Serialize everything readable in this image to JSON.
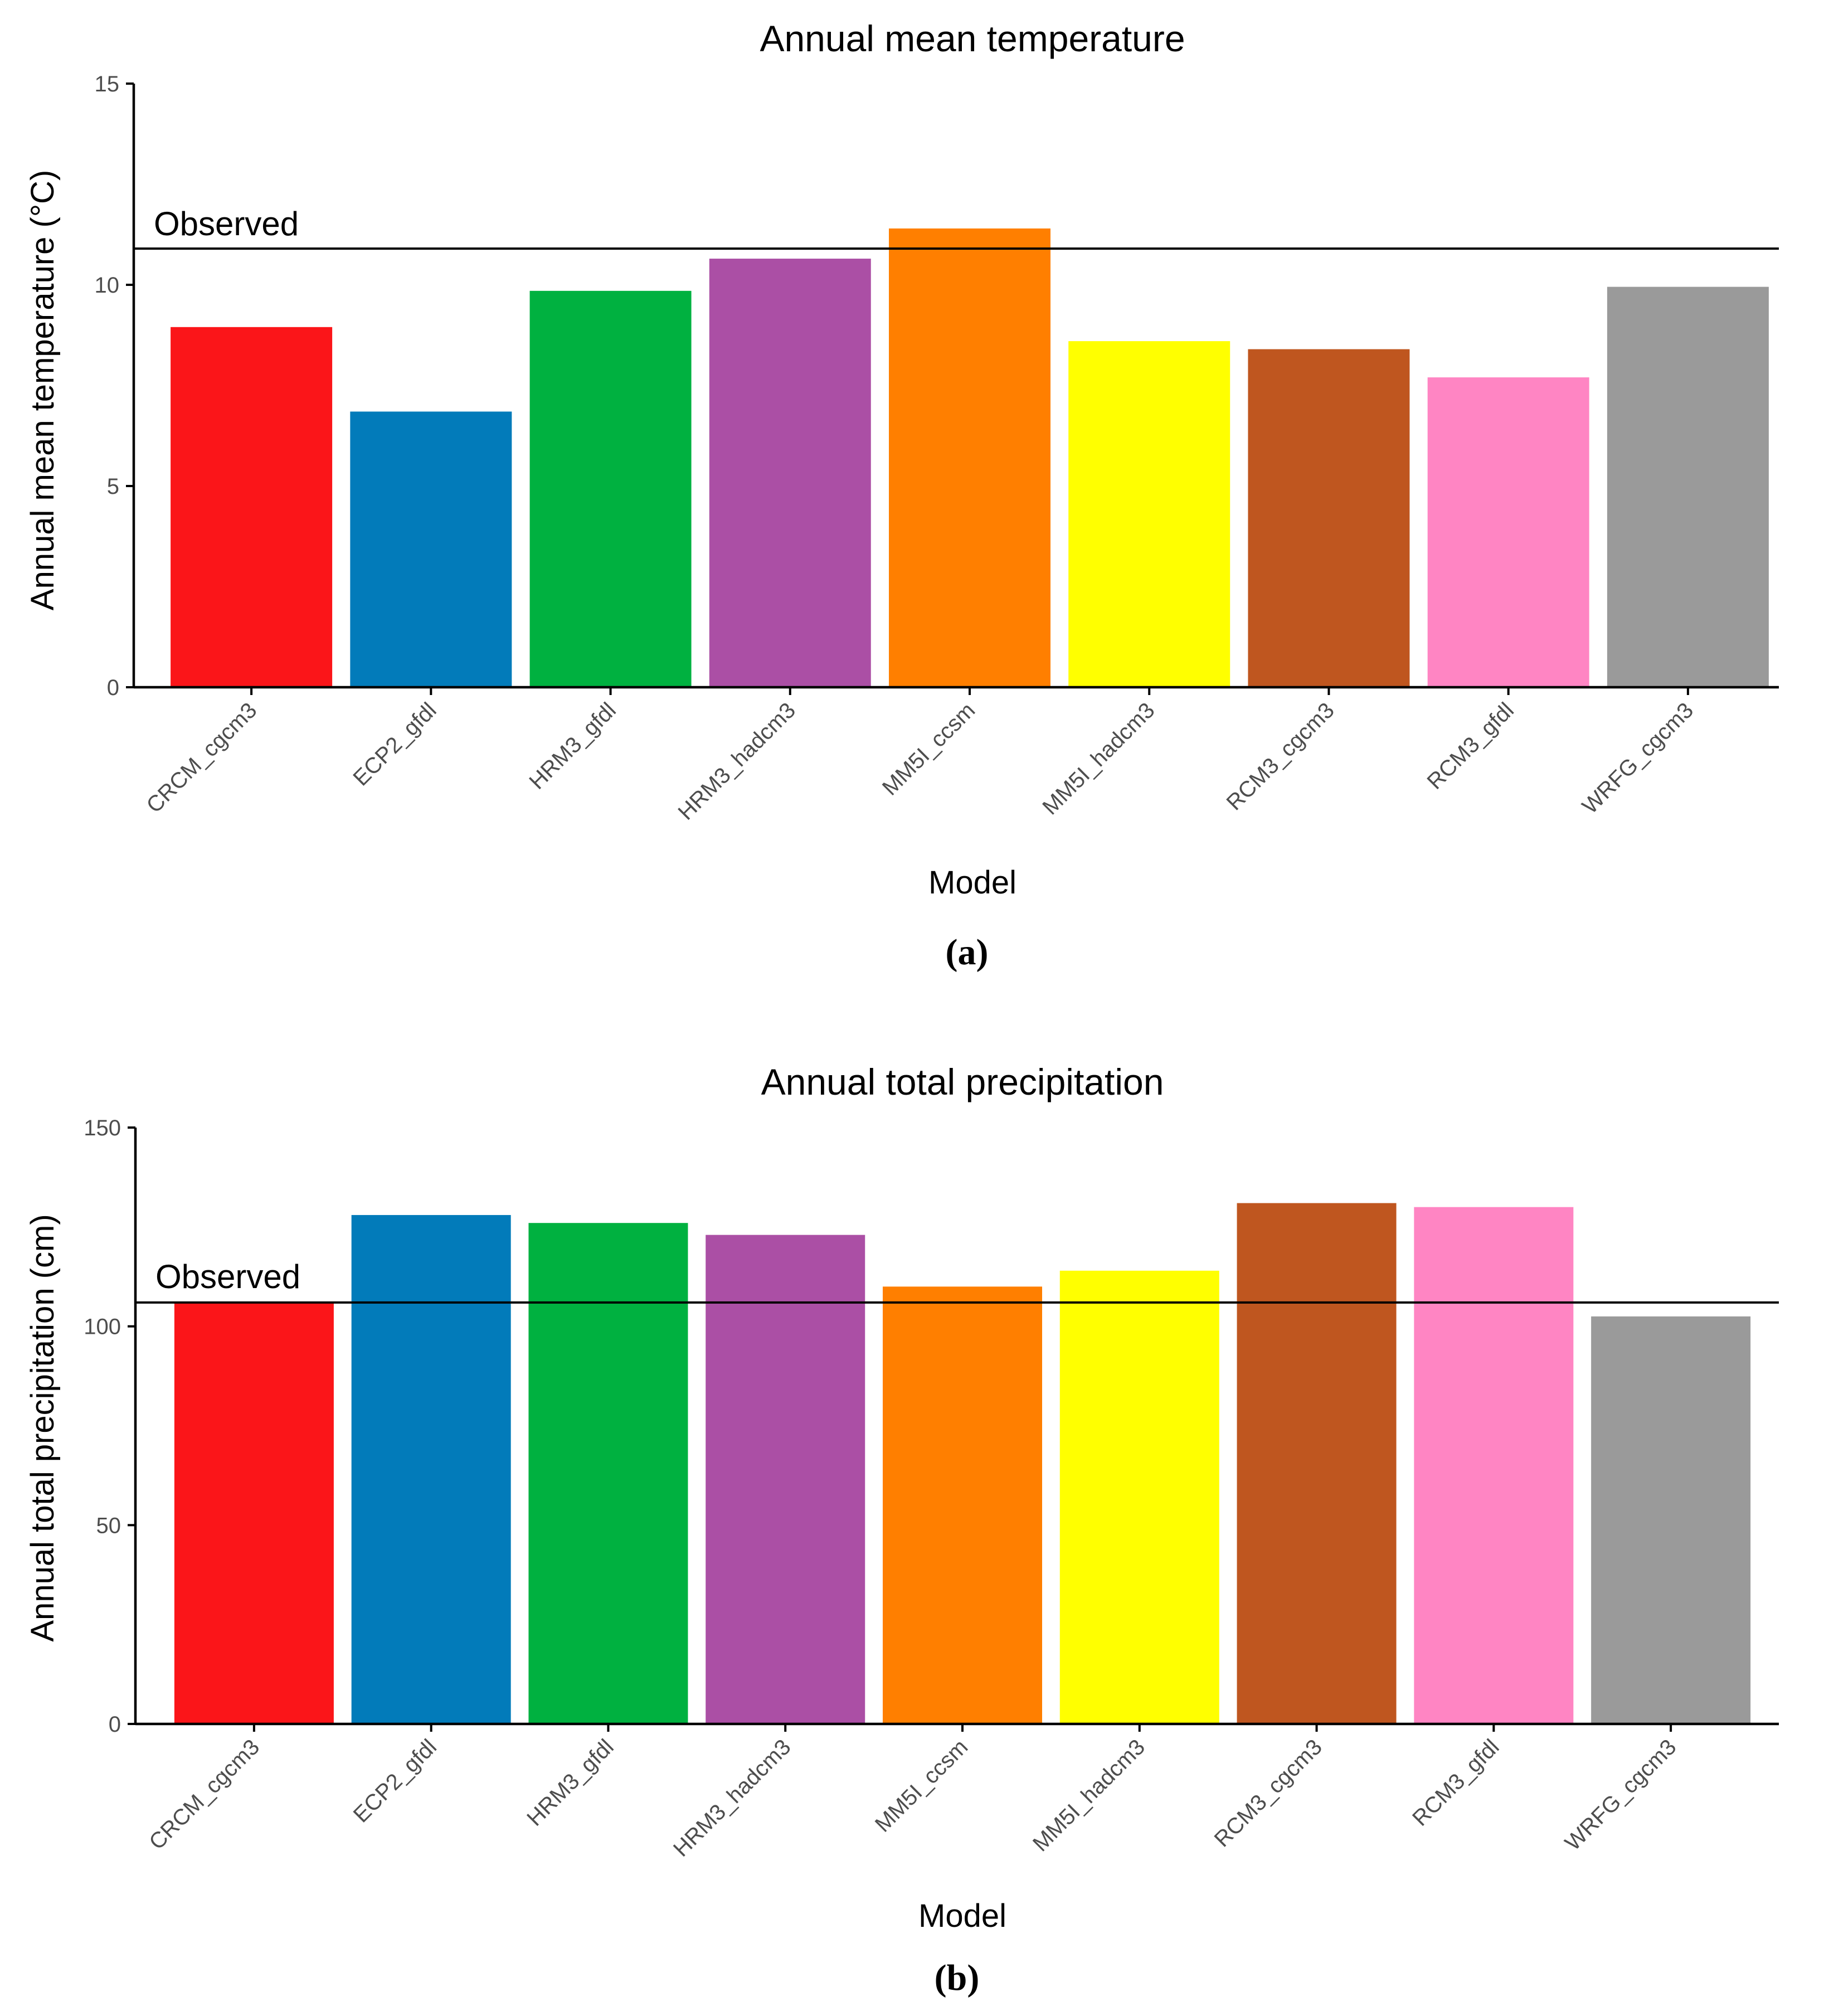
{
  "chart_data": [
    {
      "type": "bar",
      "title": "Annual mean temperature",
      "xlabel": "Model",
      "ylabel": "Annual mean temperature (°C)",
      "ylim": [
        0,
        15
      ],
      "yticks": [
        0,
        5,
        10,
        15
      ],
      "categories": [
        "CRCM_cgcm3",
        "ECP2_gfdl",
        "HRM3_gfdl",
        "HRM3_hadcm3",
        "MM5I_ccsm",
        "MM5I_hadcm3",
        "RCM3_cgcm3",
        "RCM3_gfdl",
        "WRFG_cgcm3"
      ],
      "values": [
        8.95,
        6.85,
        9.85,
        10.65,
        11.4,
        8.6,
        8.4,
        7.7,
        9.95
      ],
      "reference_line": {
        "label": "Observed",
        "value": 10.9
      },
      "caption": "(a)"
    },
    {
      "type": "bar",
      "title": "Annual total precipitation",
      "xlabel": "Model",
      "ylabel": "Annual total precipitation (cm)",
      "ylim": [
        0,
        150
      ],
      "yticks": [
        0,
        50,
        100,
        150
      ],
      "categories": [
        "CRCM_cgcm3",
        "ECP2_gfdl",
        "HRM3_gfdl",
        "HRM3_hadcm3",
        "MM5I_ccsm",
        "MM5I_hadcm3",
        "RCM3_cgcm3",
        "RCM3_gfdl",
        "WRFG_cgcm3"
      ],
      "values": [
        106,
        128,
        126,
        123,
        110,
        114,
        131,
        130,
        102.5
      ],
      "reference_line": {
        "label": "Observed",
        "value": 106
      },
      "caption": "(b)"
    }
  ],
  "colors": [
    "#fb1519",
    "#027bba",
    "#00b140",
    "#ab4fa5",
    "#ff7f00",
    "#ffff00",
    "#bf561f",
    "#ff85c3",
    "#9a9a9a"
  ]
}
